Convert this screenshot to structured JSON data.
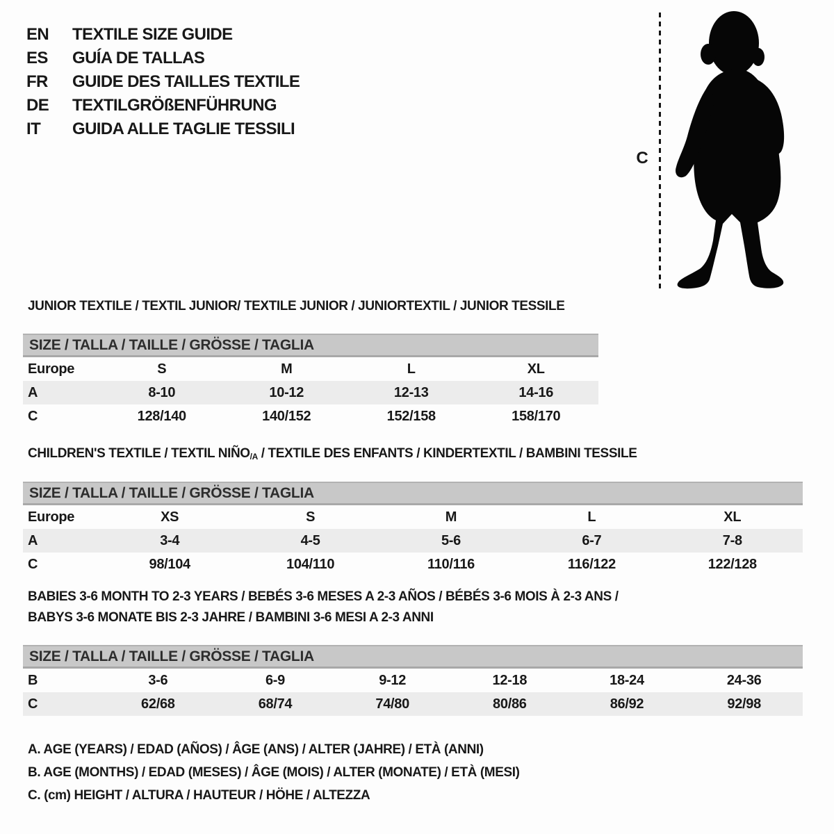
{
  "page": {
    "title": "Textile size guide"
  },
  "colors": {
    "background": "#fdfdfd",
    "text": "#181818",
    "size_bar_background": "#c8c8c8",
    "shaded_row_background": "#ececec",
    "silhouette": "#060606"
  },
  "languages": [
    {
      "code": "EN",
      "label": "TEXTILE SIZE GUIDE"
    },
    {
      "code": "ES",
      "label": "GUÍA DE TALLAS"
    },
    {
      "code": "FR",
      "label": "GUIDE DES TAILLES TEXTILE"
    },
    {
      "code": "DE",
      "label": "TEXTILGRÖßENFÜHRUNG"
    },
    {
      "code": "IT",
      "label": "GUIDA ALLE TAGLIE TESSILI"
    }
  ],
  "figure": {
    "icon": "toddler-silhouette",
    "measure_label": "C"
  },
  "sections": [
    {
      "id": "junior",
      "title_lines": [
        [
          {
            "t": "JUNIOR TEXTILE / TEXTIL JUNIOR/ TEXTILE JUNIOR / JUNIORTEXTIL / JUNIOR TESSILE"
          }
        ]
      ],
      "size_header": "SIZE / TALLA / TAILLE / GRÖSSE / TAGLIA",
      "rows": [
        {
          "label": "Europe",
          "values": [
            "S",
            "M",
            "L",
            "XL"
          ],
          "shaded": false
        },
        {
          "label": "A",
          "values": [
            "8-10",
            "10-12",
            "12-13",
            "14-16"
          ],
          "shaded": true
        },
        {
          "label": "C",
          "values": [
            "128/140",
            "140/152",
            "152/158",
            "158/170"
          ],
          "shaded": false
        }
      ]
    },
    {
      "id": "children",
      "title_lines": [
        [
          {
            "t": "CHILDREN'S TEXTILE / TEXTIL NIÑO"
          },
          {
            "t": "/A",
            "sub": true
          },
          {
            "t": " / TEXTILE DES ENFANTS / KINDERTEXTIL / BAMBINI TESSILE"
          }
        ]
      ],
      "size_header": "SIZE / TALLA / TAILLE / GRÖSSE / TAGLIA",
      "rows": [
        {
          "label": "Europe",
          "values": [
            "XS",
            "S",
            "M",
            "L",
            "XL"
          ],
          "shaded": false
        },
        {
          "label": "A",
          "values": [
            "3-4",
            "4-5",
            "5-6",
            "6-7",
            "7-8"
          ],
          "shaded": true
        },
        {
          "label": "C",
          "values": [
            "98/104",
            "104/110",
            "110/116",
            "116/122",
            "122/128"
          ],
          "shaded": false
        }
      ]
    },
    {
      "id": "babies",
      "title_lines": [
        [
          {
            "t": "BABIES 3-6 MONTH TO 2-3 YEARS / BEBÉS 3-6 MESES A 2-3 AÑOS / BÉBÉS 3-6 MOIS À 2-3 ANS /"
          }
        ],
        [
          {
            "t": "BABYS 3-6 MONATE BIS 2-3 JAHRE / BAMBINI 3-6 MESI A 2-3 ANNI"
          }
        ]
      ],
      "size_header": "SIZE / TALLA / TAILLE / GRÖSSE / TAGLIA",
      "rows": [
        {
          "label": "B",
          "values": [
            "3-6",
            "6-9",
            "9-12",
            "12-18",
            "18-24",
            "24-36"
          ],
          "shaded": false
        },
        {
          "label": "C",
          "values": [
            "62/68",
            "68/74",
            "74/80",
            "80/86",
            "86/92",
            "92/98"
          ],
          "shaded": true
        }
      ]
    }
  ],
  "footnotes": [
    "A. AGE (YEARS) / EDAD (AÑOS) / ÂGE (ANS) / ALTER (JAHRE) / ETÀ (ANNI)",
    "B. AGE (MONTHS) / EDAD (MESES) / ÂGE (MOIS) / ALTER (MONATE) / ETÀ (MESI)",
    "C. (cm) HEIGHT / ALTURA / HAUTEUR / HÖHE / ALTEZZA"
  ]
}
